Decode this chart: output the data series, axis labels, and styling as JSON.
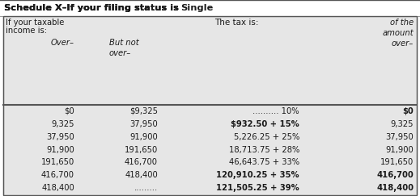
{
  "title_normal": "Schedule X–If your filing status is ",
  "title_bold": "Single",
  "header_col1_line1": "If your taxable",
  "header_col1_line2": "income is:",
  "header_col3": "The tax is:",
  "header_col4_line1": "of the",
  "header_col4_line2": "amount",
  "header_col4_line3": "over–",
  "subhdr_col1": "Over–",
  "subhdr_col2_line1": "But not",
  "subhdr_col2_line2": "over–",
  "rows": [
    [
      "$0",
      "$9,325",
      ".......... 10%",
      "$0"
    ],
    [
      "9,325",
      "37,950",
      "$932.50 + 15%",
      "9,325"
    ],
    [
      "37,950",
      "91,900",
      "5,226.25 + 25%",
      "37,950"
    ],
    [
      "91,900",
      "191,650",
      "18,713.75 + 28%",
      "91,900"
    ],
    [
      "191,650",
      "416,700",
      "46,643.75 + 33%",
      "191,650"
    ],
    [
      "416,700",
      "418,400",
      "120,910.25 + 35%",
      "416,700"
    ],
    [
      "418,400",
      ".........",
      "121,505.25 + 39%",
      "418,400"
    ]
  ],
  "row_bold_tax": [
    false,
    true,
    false,
    false,
    false,
    true,
    true
  ],
  "row_bold_col4": [
    true,
    false,
    false,
    false,
    false,
    true,
    true
  ],
  "bg_white": "#ffffff",
  "bg_gray": "#e6e6e6",
  "border_dark": "#555555",
  "border_light": "#999999",
  "text_dark": "#1a1a1a",
  "figsize": [
    5.19,
    2.43
  ],
  "dpi": 100
}
